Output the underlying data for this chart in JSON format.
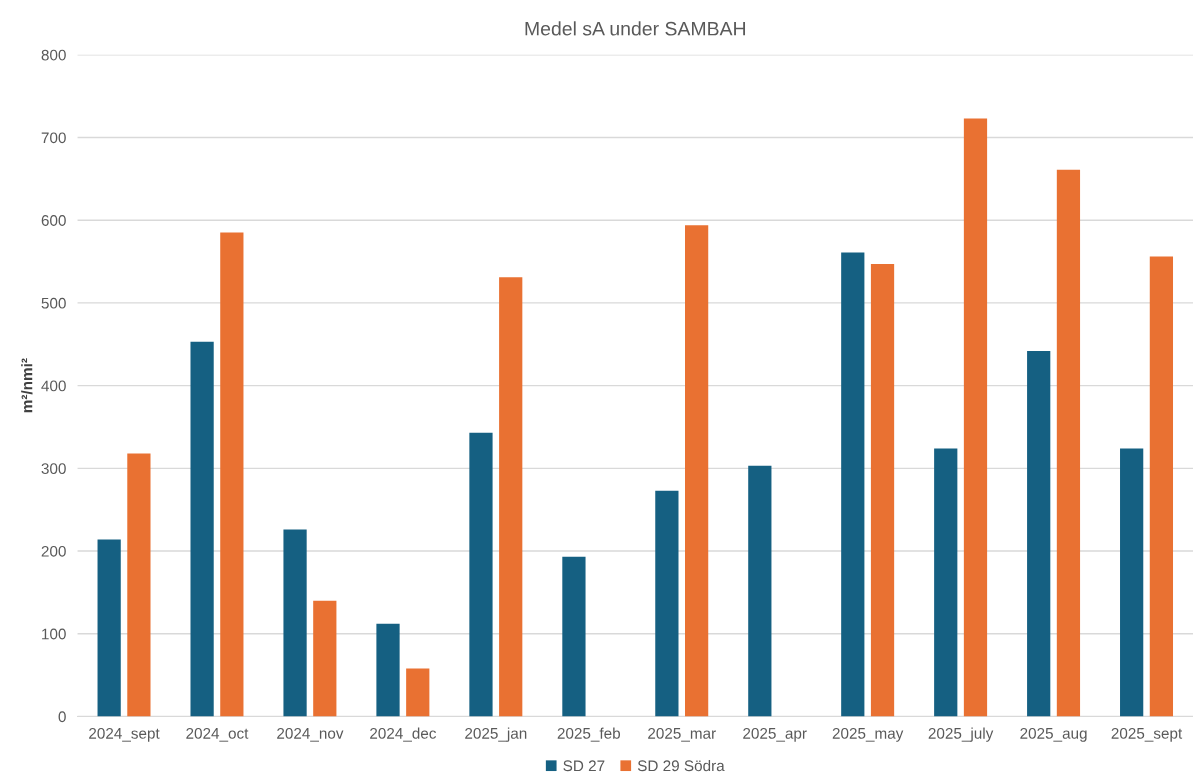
{
  "chart_data": {
    "type": "bar",
    "title": "Medel sA under SAMBAH",
    "ylabel": "m²/nmi²",
    "categories": [
      "2024_sept",
      "2024_oct",
      "2024_nov",
      "2024_dec",
      "2025_jan",
      "2025_feb",
      "2025_mar",
      "2025_apr",
      "2025_may",
      "2025_july",
      "2025_aug",
      "2025_sept"
    ],
    "series": [
      {
        "name": "SD 27",
        "color": "#156082",
        "values": [
          214,
          453,
          226,
          112,
          343,
          193,
          273,
          303,
          561,
          324,
          442,
          324
        ]
      },
      {
        "name": "SD 29 Södra",
        "color": "#e97132",
        "values": [
          318,
          585,
          140,
          58,
          531,
          null,
          594,
          null,
          547,
          723,
          661,
          556
        ]
      }
    ],
    "ylim": [
      0,
      800
    ],
    "yticks": [
      0,
      100,
      200,
      300,
      400,
      500,
      600,
      700,
      800
    ],
    "grid": "y",
    "legend": "bottom"
  }
}
